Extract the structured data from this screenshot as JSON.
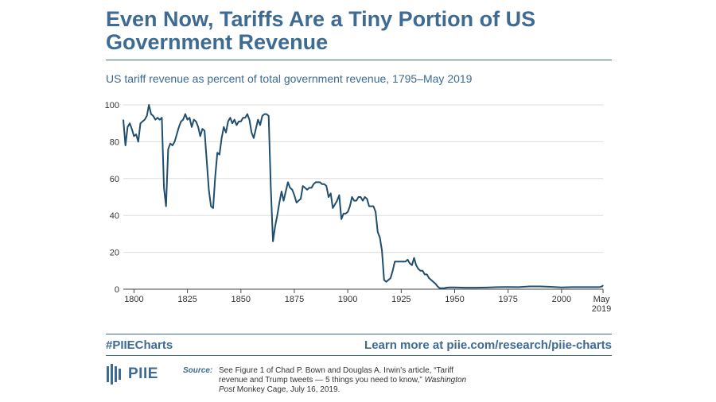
{
  "header": {
    "title": "Even Now, Tariffs Are a Tiny Portion of US Government Revenue",
    "subtitle": "US tariff revenue as percent of total government revenue, 1795–May 2019"
  },
  "chart_data": {
    "type": "line",
    "title": "US tariff revenue as percent of total government revenue, 1795–May 2019",
    "xlabel": "",
    "ylabel": "",
    "xlim": [
      1795,
      2019.4
    ],
    "ylim": [
      0,
      100
    ],
    "x_ticks": [
      {
        "value": 1800,
        "label": "1800"
      },
      {
        "value": 1825,
        "label": "1825"
      },
      {
        "value": 1850,
        "label": "1850"
      },
      {
        "value": 1875,
        "label": "1875"
      },
      {
        "value": 1900,
        "label": "1900"
      },
      {
        "value": 1925,
        "label": "1925"
      },
      {
        "value": 1950,
        "label": "1950"
      },
      {
        "value": 1975,
        "label": "1975"
      },
      {
        "value": 2000,
        "label": "2000"
      }
    ],
    "end_tick": {
      "value": 2019.4,
      "label_line1": "May",
      "label_line2": "2019"
    },
    "y_ticks": [
      0,
      20,
      40,
      60,
      80,
      100
    ],
    "grid": true,
    "line_color": "#1f4e6e",
    "series": [
      {
        "name": "Tariff revenue share (%)",
        "points": [
          [
            1795,
            92
          ],
          [
            1796,
            78
          ],
          [
            1797,
            88
          ],
          [
            1798,
            90
          ],
          [
            1799,
            87
          ],
          [
            1800,
            83
          ],
          [
            1801,
            84
          ],
          [
            1802,
            80
          ],
          [
            1803,
            90
          ],
          [
            1804,
            91
          ],
          [
            1805,
            92
          ],
          [
            1806,
            94
          ],
          [
            1807,
            100
          ],
          [
            1808,
            95
          ],
          [
            1809,
            94
          ],
          [
            1810,
            92
          ],
          [
            1811,
            93
          ],
          [
            1812,
            92
          ],
          [
            1813,
            93
          ],
          [
            1814,
            55
          ],
          [
            1815,
            45
          ],
          [
            1816,
            76
          ],
          [
            1817,
            79
          ],
          [
            1818,
            78
          ],
          [
            1819,
            80
          ],
          [
            1820,
            84
          ],
          [
            1821,
            88
          ],
          [
            1822,
            91
          ],
          [
            1823,
            92
          ],
          [
            1824,
            95
          ],
          [
            1825,
            92
          ],
          [
            1826,
            93
          ],
          [
            1827,
            88
          ],
          [
            1828,
            92
          ],
          [
            1829,
            91
          ],
          [
            1830,
            88
          ],
          [
            1831,
            83
          ],
          [
            1832,
            87
          ],
          [
            1833,
            86
          ],
          [
            1834,
            70
          ],
          [
            1835,
            54
          ],
          [
            1836,
            45
          ],
          [
            1837,
            44
          ],
          [
            1838,
            61
          ],
          [
            1839,
            74
          ],
          [
            1840,
            73
          ],
          [
            1841,
            82
          ],
          [
            1842,
            88
          ],
          [
            1843,
            85
          ],
          [
            1844,
            91
          ],
          [
            1845,
            93
          ],
          [
            1846,
            90
          ],
          [
            1847,
            92
          ],
          [
            1848,
            89
          ],
          [
            1849,
            91
          ],
          [
            1850,
            91
          ],
          [
            1851,
            93
          ],
          [
            1852,
            93
          ],
          [
            1853,
            95
          ],
          [
            1854,
            92
          ],
          [
            1855,
            85
          ],
          [
            1856,
            82
          ],
          [
            1857,
            87
          ],
          [
            1858,
            92
          ],
          [
            1859,
            89
          ],
          [
            1860,
            94
          ],
          [
            1861,
            95
          ],
          [
            1862,
            95
          ],
          [
            1863,
            94
          ],
          [
            1864,
            55
          ],
          [
            1865,
            26
          ],
          [
            1866,
            34
          ],
          [
            1867,
            40
          ],
          [
            1868,
            47
          ],
          [
            1869,
            53
          ],
          [
            1870,
            48
          ],
          [
            1871,
            53
          ],
          [
            1872,
            58
          ],
          [
            1873,
            55
          ],
          [
            1874,
            54
          ],
          [
            1875,
            51
          ],
          [
            1876,
            47
          ],
          [
            1877,
            48
          ],
          [
            1878,
            49
          ],
          [
            1879,
            56
          ],
          [
            1880,
            55
          ],
          [
            1881,
            54
          ],
          [
            1882,
            55
          ],
          [
            1883,
            55
          ],
          [
            1884,
            57
          ],
          [
            1885,
            58
          ],
          [
            1886,
            58
          ],
          [
            1887,
            58
          ],
          [
            1888,
            57
          ],
          [
            1889,
            57
          ],
          [
            1890,
            56
          ],
          [
            1891,
            50
          ],
          [
            1892,
            52
          ],
          [
            1893,
            44
          ],
          [
            1894,
            46
          ],
          [
            1895,
            48
          ],
          [
            1896,
            51
          ],
          [
            1897,
            38
          ],
          [
            1898,
            41
          ],
          [
            1899,
            41
          ],
          [
            1900,
            42
          ],
          [
            1901,
            45
          ],
          [
            1902,
            50
          ],
          [
            1903,
            48
          ],
          [
            1904,
            48
          ],
          [
            1905,
            50
          ],
          [
            1906,
            50
          ],
          [
            1907,
            48
          ],
          [
            1908,
            50
          ],
          [
            1909,
            49
          ],
          [
            1910,
            45
          ],
          [
            1911,
            45
          ],
          [
            1912,
            45
          ],
          [
            1913,
            42
          ],
          [
            1914,
            31
          ],
          [
            1915,
            28
          ],
          [
            1916,
            21
          ],
          [
            1917,
            5
          ],
          [
            1918,
            4
          ],
          [
            1919,
            5
          ],
          [
            1920,
            6
          ],
          [
            1921,
            10
          ],
          [
            1922,
            15
          ],
          [
            1923,
            15
          ],
          [
            1924,
            15
          ],
          [
            1925,
            15
          ],
          [
            1926,
            15
          ],
          [
            1927,
            15
          ],
          [
            1928,
            16
          ],
          [
            1929,
            14
          ],
          [
            1930,
            13
          ],
          [
            1931,
            17
          ],
          [
            1932,
            13
          ],
          [
            1933,
            11
          ],
          [
            1934,
            10
          ],
          [
            1935,
            10
          ],
          [
            1936,
            8
          ],
          [
            1937,
            8
          ],
          [
            1938,
            6
          ],
          [
            1939,
            5
          ],
          [
            1940,
            4
          ],
          [
            1941,
            3
          ],
          [
            1942,
            1.5
          ],
          [
            1943,
            0.5
          ],
          [
            1944,
            0.5
          ],
          [
            1945,
            0.5
          ],
          [
            1946,
            0.8
          ],
          [
            1947,
            0.9
          ],
          [
            1948,
            1
          ],
          [
            1949,
            1
          ],
          [
            1950,
            1
          ],
          [
            1955,
            0.8
          ],
          [
            1960,
            0.8
          ],
          [
            1965,
            0.9
          ],
          [
            1970,
            1.1
          ],
          [
            1975,
            1.2
          ],
          [
            1980,
            1.1
          ],
          [
            1985,
            1.5
          ],
          [
            1990,
            1.5
          ],
          [
            1995,
            1.3
          ],
          [
            2000,
            1
          ],
          [
            2005,
            1.1
          ],
          [
            2010,
            1.1
          ],
          [
            2015,
            1.1
          ],
          [
            2017,
            1.1
          ],
          [
            2018,
            1.2
          ],
          [
            2019,
            1.5
          ],
          [
            2019.4,
            2.2
          ]
        ]
      }
    ]
  },
  "footer": {
    "hashtag": "#PIIECharts",
    "learn_more": "Learn more at piie.com/research/piie-charts",
    "logo_text": "PIIE",
    "source_label": "Source:",
    "source_part1": "See Figure 1 of Chad P. Bown and Douglas A. Irwin's article, “Tariff revenue and Trump tweets — 5 things you need to know,”",
    "source_pub": "Washington Post",
    "source_part2": "Monkey Cage, July 16, 2019."
  },
  "colors": {
    "brand": "#3d6b93",
    "line": "#1f4e6e",
    "grid": "#dddddd"
  }
}
